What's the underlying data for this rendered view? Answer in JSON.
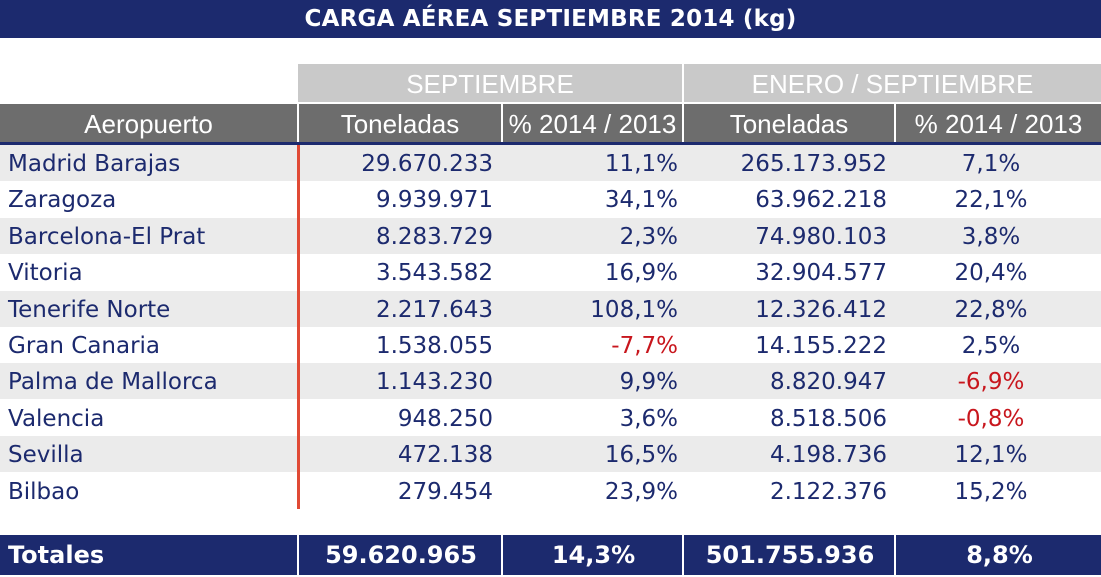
{
  "title": "CARGA AÉREA SEPTIEMBRE 2014 (kg)",
  "groups": [
    "SEPTIEMBRE",
    "ENERO / SEPTIEMBRE"
  ],
  "columns": [
    "Aeropuerto",
    "Toneladas",
    "% 2014 / 2013",
    "Toneladas",
    "% 2014 / 2013"
  ],
  "rows": [
    [
      "Madrid Barajas",
      "29.670.233",
      "11,1%",
      "265.173.952",
      "7,1%"
    ],
    [
      "Zaragoza",
      "9.939.971",
      "34,1%",
      "63.962.218",
      "22,1%"
    ],
    [
      "Barcelona-El Prat",
      "8.283.729",
      "2,3%",
      "74.980.103",
      "3,8%"
    ],
    [
      "Vitoria",
      "3.543.582",
      "16,9%",
      "32.904.577",
      "20,4%"
    ],
    [
      "Tenerife Norte",
      "2.217.643",
      "108,1%",
      "12.326.412",
      "22,8%"
    ],
    [
      "Gran Canaria",
      "1.538.055",
      "-7,7%",
      "14.155.222",
      "2,5%"
    ],
    [
      "Palma de Mallorca",
      "1.143.230",
      "9,9%",
      "8.820.947",
      "-6,9%"
    ],
    [
      "Valencia",
      "948.250",
      "3,6%",
      "8.518.506",
      "-0,8%"
    ],
    [
      "Sevilla",
      "472.138",
      "16,5%",
      "4.198.736",
      "12,1%"
    ],
    [
      "Bilbao",
      "279.454",
      "23,9%",
      "2.122.376",
      "15,2%"
    ]
  ],
  "totals": [
    "Totales",
    "59.620.965",
    "14,3%",
    "501.755.936",
    "8,8%"
  ],
  "colors": {
    "navy": "#1c2a6e",
    "negative": "#c8161d",
    "header_gray": "#6d6d6d",
    "group_gray": "#c9c9c9",
    "accent_line": "#e04a35"
  }
}
